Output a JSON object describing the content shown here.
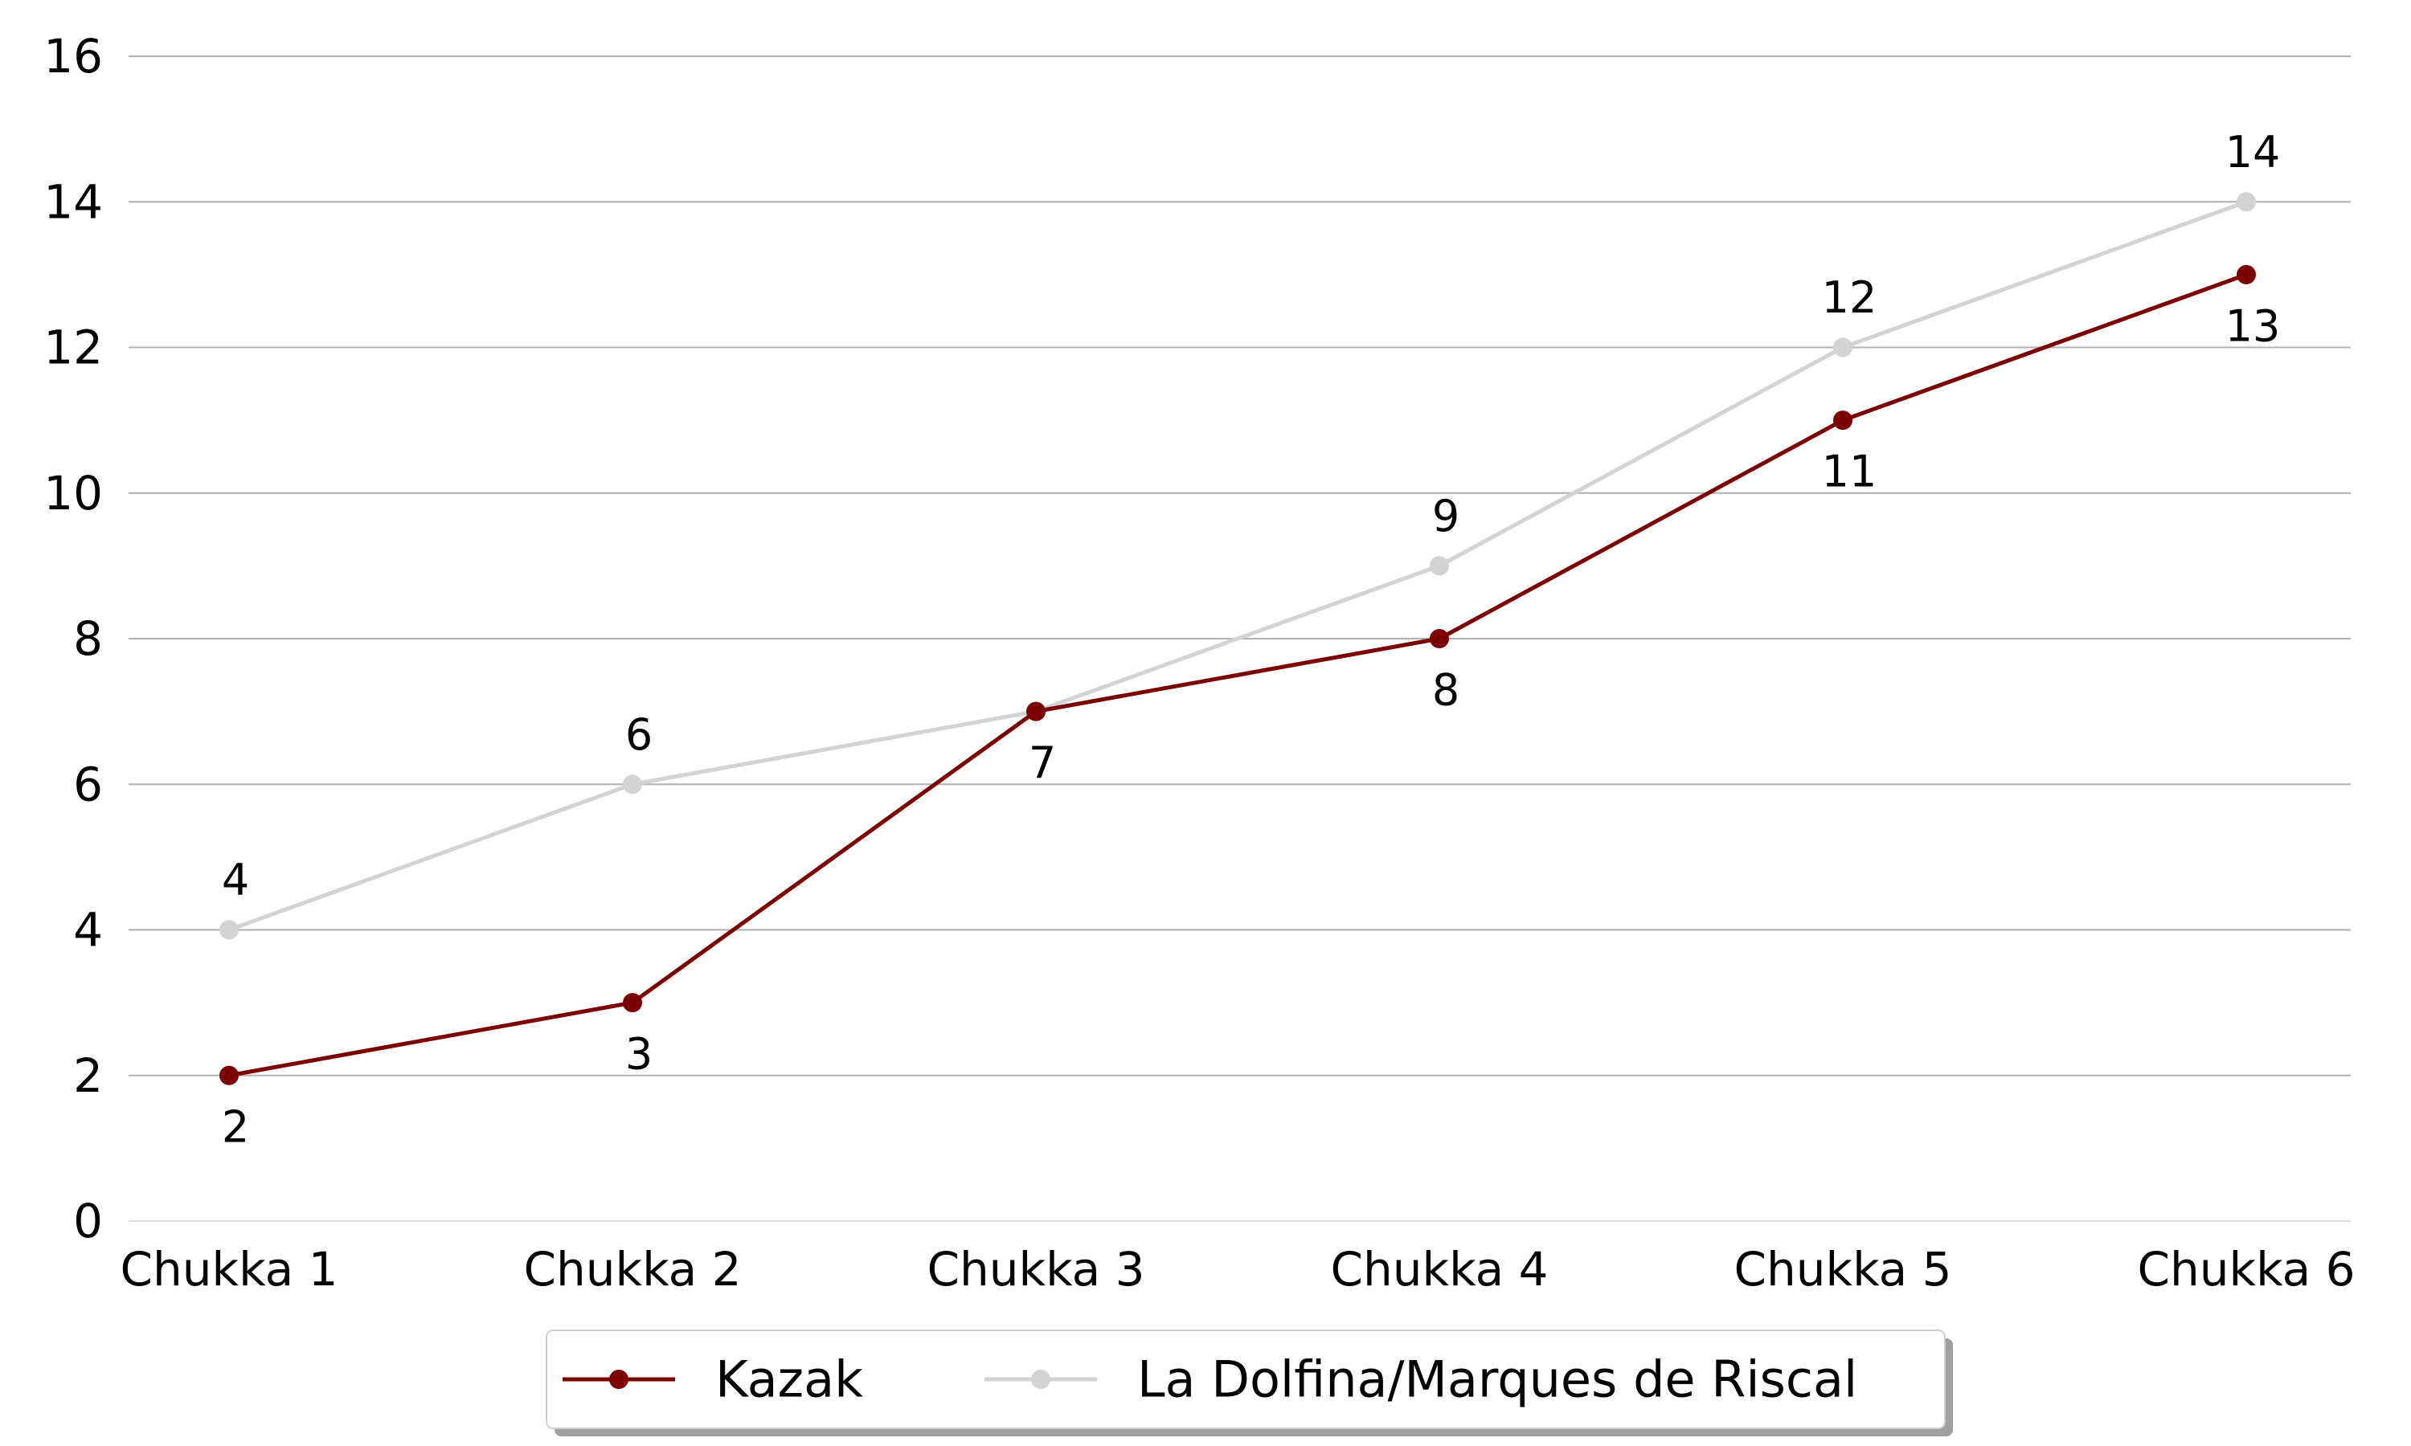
{
  "chart_data": {
    "type": "line",
    "title": "",
    "xlabel": "",
    "ylabel": "",
    "categories": [
      "Chukka 1",
      "Chukka 2",
      "Chukka 3",
      "Chukka 4",
      "Chukka 5",
      "Chukka 6"
    ],
    "ylim": [
      0,
      16
    ],
    "yticks": [
      "0",
      "2",
      "4",
      "6",
      "8",
      "10",
      "12",
      "14",
      "16"
    ],
    "grid": "horizontal",
    "legend_position": "bottom-center",
    "series": [
      {
        "name": "Kazak",
        "color": "#7b0000",
        "values": [
          2,
          3,
          7,
          8,
          11,
          13
        ],
        "labels": [
          "2",
          "3",
          "7",
          "8",
          "11",
          "13"
        ],
        "label_position": "below"
      },
      {
        "name": "La Dolfina/Marques de Riscal",
        "color": "#d3d3d3",
        "values": [
          4,
          6,
          7,
          9,
          12,
          14
        ],
        "labels": [
          "4",
          "6",
          "",
          "9",
          "12",
          "14"
        ],
        "label_position": "above"
      }
    ]
  }
}
